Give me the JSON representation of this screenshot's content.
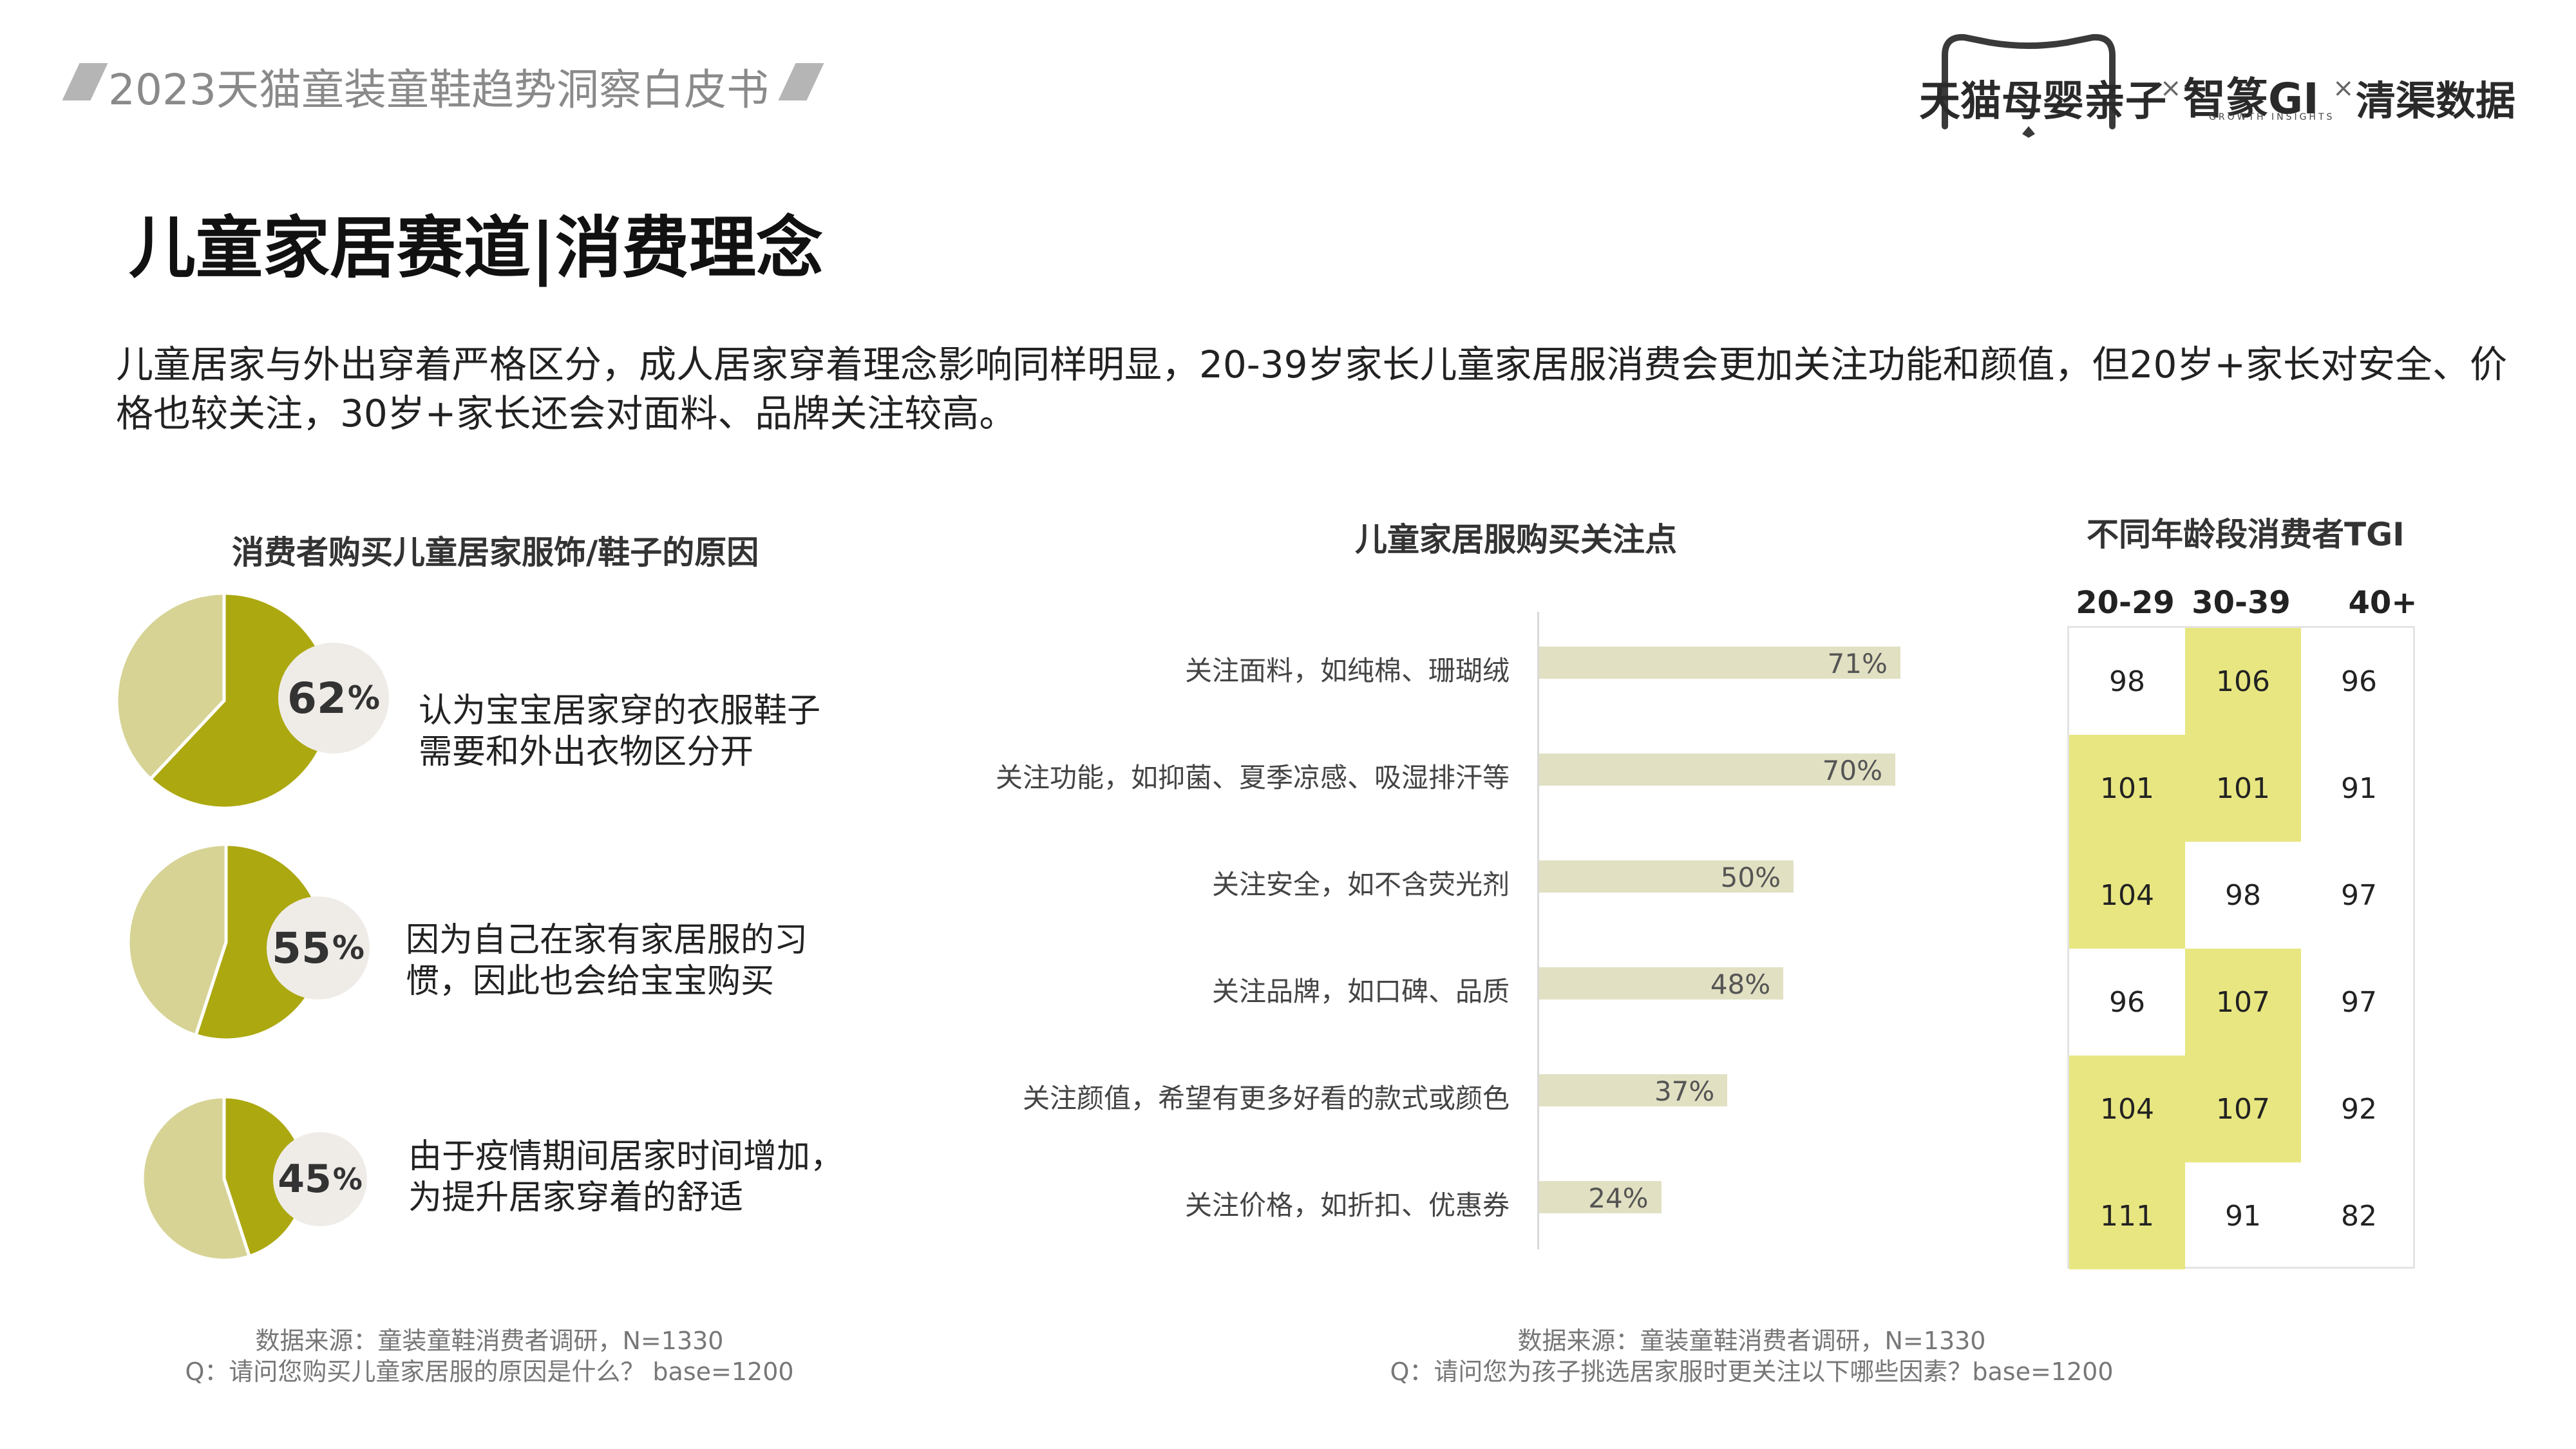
{
  "header": {
    "report_title": "2023天猫童装童鞋趋势洞察白皮书",
    "logo_tmall": "天猫母婴亲子",
    "logo_sep": "×",
    "logo_zhizhuan": "智篆GI",
    "logo_zhizhuan_sub": "GROWTH INSIGHTS",
    "logo_qingqu": "清渠数据"
  },
  "page_title": "儿童家居赛道|消费理念",
  "description": "儿童居家与外出穿着严格区分，成人居家穿着理念影响同样明显，20-39岁家长儿童家居服消费会更加关注功能和颜值，但20岁+家长对安全、价格也较关注，30岁+家长还会对面料、品牌关注较高。",
  "colors": {
    "pie_main": "#aca810",
    "pie_rest": "#d6d395",
    "bar": "#e1e0c2",
    "tgi_highlight": "#e8e681",
    "badge": "#efece8"
  },
  "left_section": {
    "title": "消费者购买儿童居家服饰/鞋子的原因",
    "source_line1": "数据来源：童装童鞋消费者调研，N=1330",
    "source_line2": "Q：请问您购买儿童家居服的原因是什么？ base=1200"
  },
  "middle_section": {
    "title": "儿童家居服购买关注点",
    "source_line1": "数据来源：童装童鞋消费者调研，N=1330",
    "source_line2": "Q：请问您为孩子挑选居家服时更关注以下哪些因素？base=1200"
  },
  "right_section": {
    "title": "不同年龄段消费者TGI"
  },
  "chart_data": [
    {
      "type": "pie",
      "charts": [
        {
          "value": 62,
          "value_label": "62",
          "unit": "%",
          "label_line1": "认为宝宝居家穿的衣服鞋子",
          "label_line2": "需要和外出衣物区分开"
        },
        {
          "value": 55,
          "value_label": "55",
          "unit": "%",
          "label_line1": "因为自己在家有家居服的习",
          "label_line2": "惯，因此也会给宝宝购买"
        },
        {
          "value": 45,
          "value_label": "45",
          "unit": "%",
          "label_line1": "由于疫情期间居家时间增加，",
          "label_line2": "为提升居家穿着的舒适"
        }
      ]
    },
    {
      "type": "bar",
      "orientation": "horizontal",
      "categories": [
        "关注面料，如纯棉、珊瑚绒",
        "关注功能，如抑菌、夏季凉感、吸湿排汗等",
        "关注安全，如不含荧光剂",
        "关注品牌，如口碑、品质",
        "关注颜值，希望有更多好看的款式或颜色",
        "关注价格，如折扣、优惠券"
      ],
      "values": [
        71,
        70,
        50,
        48,
        37,
        24
      ],
      "value_labels": [
        "71%",
        "70%",
        "50%",
        "48%",
        "37%",
        "24%"
      ],
      "xlim": [
        0,
        100
      ]
    },
    {
      "type": "table",
      "columns": [
        "20-29",
        "30-39",
        "40+"
      ],
      "rows": [
        [
          98,
          106,
          96
        ],
        [
          101,
          101,
          91
        ],
        [
          104,
          98,
          97
        ],
        [
          96,
          107,
          97
        ],
        [
          104,
          107,
          92
        ],
        [
          111,
          91,
          82
        ]
      ],
      "highlight_threshold": 100
    }
  ]
}
